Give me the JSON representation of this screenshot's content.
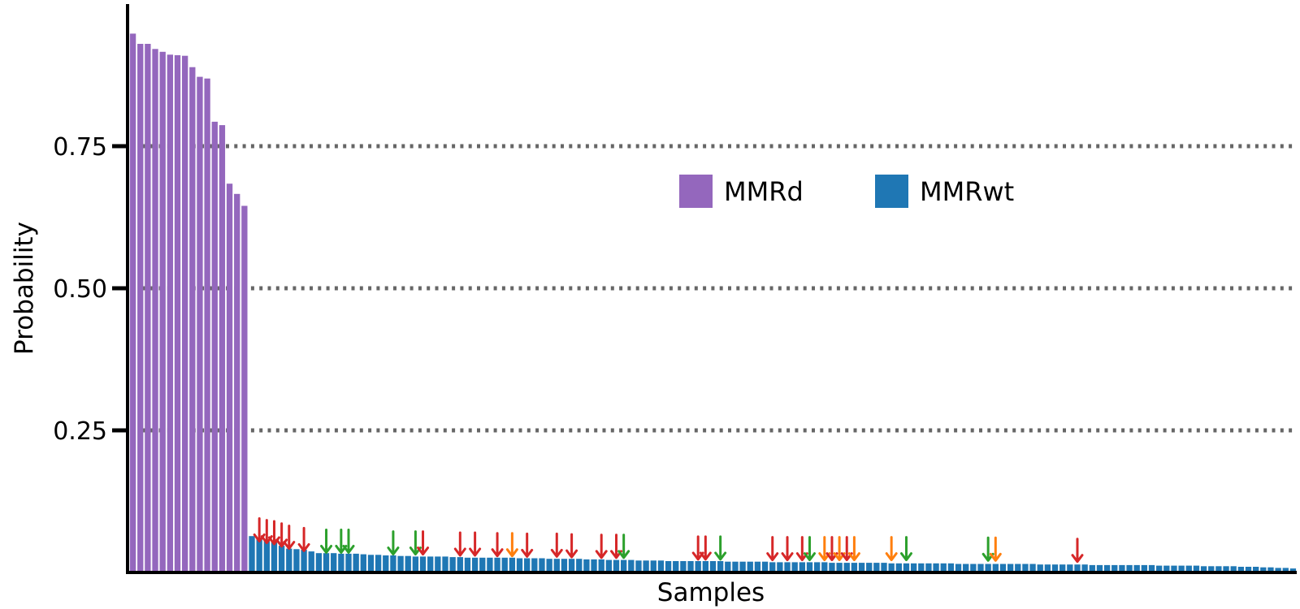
{
  "chart_data": {
    "type": "bar",
    "title": "",
    "xlabel": "Samples",
    "ylabel": "Probability",
    "ylim": [
      0,
      0.95
    ],
    "yticks": [
      {
        "value": 0.25,
        "label": "0.25"
      },
      {
        "value": 0.5,
        "label": "0.50"
      },
      {
        "value": 0.75,
        "label": "0.75"
      }
    ],
    "grid": "horizontal dotted at y ticks",
    "legend": {
      "placement": "upper-center",
      "entries": [
        {
          "name": "MMRd",
          "color": "#9467bd"
        },
        {
          "name": "MMRwt",
          "color": "#1f77b4"
        }
      ]
    },
    "series": [
      {
        "name": "MMRd",
        "color": "#9467bd",
        "values": [
          0.948,
          0.93,
          0.93,
          0.921,
          0.916,
          0.911,
          0.91,
          0.909,
          0.889,
          0.872,
          0.869,
          0.793,
          0.787,
          0.684,
          0.666,
          0.645
        ]
      },
      {
        "name": "MMRwt",
        "color": "#1f77b4",
        "values": [
          0.064,
          0.061,
          0.058,
          0.055,
          0.047,
          0.042,
          0.041,
          0.04,
          0.037,
          0.034,
          0.034,
          0.034,
          0.033,
          0.033,
          0.033,
          0.032,
          0.031,
          0.031,
          0.03,
          0.03,
          0.029,
          0.029,
          0.028,
          0.028,
          0.028,
          0.028,
          0.028,
          0.027,
          0.027,
          0.026,
          0.026,
          0.026,
          0.026,
          0.026,
          0.026,
          0.026,
          0.025,
          0.025,
          0.025,
          0.025,
          0.024,
          0.024,
          0.024,
          0.024,
          0.024,
          0.023,
          0.023,
          0.023,
          0.022,
          0.022,
          0.022,
          0.022,
          0.021,
          0.021,
          0.021,
          0.021,
          0.02,
          0.02,
          0.02,
          0.02,
          0.02,
          0.02,
          0.02,
          0.02,
          0.019,
          0.019,
          0.019,
          0.019,
          0.019,
          0.019,
          0.018,
          0.018,
          0.018,
          0.018,
          0.018,
          0.018,
          0.018,
          0.018,
          0.017,
          0.017,
          0.017,
          0.017,
          0.017,
          0.017,
          0.017,
          0.017,
          0.016,
          0.016,
          0.016,
          0.016,
          0.016,
          0.016,
          0.016,
          0.016,
          0.016,
          0.015,
          0.015,
          0.015,
          0.015,
          0.015,
          0.015,
          0.015,
          0.015,
          0.015,
          0.015,
          0.015,
          0.014,
          0.014,
          0.014,
          0.014,
          0.014,
          0.014,
          0.014,
          0.013,
          0.013,
          0.013,
          0.013,
          0.013,
          0.013,
          0.013,
          0.013,
          0.013,
          0.012,
          0.012,
          0.012,
          0.012,
          0.012,
          0.012,
          0.011,
          0.011,
          0.011,
          0.011,
          0.011,
          0.01,
          0.01,
          0.01,
          0.009,
          0.009,
          0.008,
          0.008,
          0.007
        ]
      }
    ],
    "markers": [
      {
        "sample": 17,
        "color": "#d62728",
        "level": 0.095
      },
      {
        "sample": 18,
        "color": "#d62728",
        "level": 0.092
      },
      {
        "sample": 19,
        "color": "#d62728",
        "level": 0.09
      },
      {
        "sample": 20,
        "color": "#d62728",
        "level": 0.086
      },
      {
        "sample": 21,
        "color": "#d62728",
        "level": 0.082
      },
      {
        "sample": 23,
        "color": "#d62728",
        "level": 0.078
      },
      {
        "sample": 26,
        "color": "#2ca02c",
        "level": 0.075
      },
      {
        "sample": 28,
        "color": "#2ca02c",
        "level": 0.075
      },
      {
        "sample": 29,
        "color": "#2ca02c",
        "level": 0.075
      },
      {
        "sample": 35,
        "color": "#2ca02c",
        "level": 0.072
      },
      {
        "sample": 38,
        "color": "#2ca02c",
        "level": 0.072
      },
      {
        "sample": 39,
        "color": "#d62728",
        "level": 0.072
      },
      {
        "sample": 44,
        "color": "#d62728",
        "level": 0.07
      },
      {
        "sample": 46,
        "color": "#d62728",
        "level": 0.07
      },
      {
        "sample": 49,
        "color": "#d62728",
        "level": 0.069
      },
      {
        "sample": 51,
        "color": "#ff7f0e",
        "level": 0.069
      },
      {
        "sample": 53,
        "color": "#d62728",
        "level": 0.068
      },
      {
        "sample": 57,
        "color": "#d62728",
        "level": 0.068
      },
      {
        "sample": 59,
        "color": "#d62728",
        "level": 0.067
      },
      {
        "sample": 63,
        "color": "#d62728",
        "level": 0.066
      },
      {
        "sample": 65,
        "color": "#d62728",
        "level": 0.066
      },
      {
        "sample": 66,
        "color": "#2ca02c",
        "level": 0.066
      },
      {
        "sample": 76,
        "color": "#d62728",
        "level": 0.063
      },
      {
        "sample": 77,
        "color": "#d62728",
        "level": 0.063
      },
      {
        "sample": 79,
        "color": "#2ca02c",
        "level": 0.063
      },
      {
        "sample": 86,
        "color": "#d62728",
        "level": 0.062
      },
      {
        "sample": 88,
        "color": "#d62728",
        "level": 0.062
      },
      {
        "sample": 90,
        "color": "#d62728",
        "level": 0.062
      },
      {
        "sample": 91,
        "color": "#2ca02c",
        "level": 0.062
      },
      {
        "sample": 93,
        "color": "#ff7f0e",
        "level": 0.062
      },
      {
        "sample": 94,
        "color": "#d62728",
        "level": 0.062
      },
      {
        "sample": 95,
        "color": "#ff7f0e",
        "level": 0.062
      },
      {
        "sample": 96,
        "color": "#d62728",
        "level": 0.062
      },
      {
        "sample": 97,
        "color": "#ff7f0e",
        "level": 0.062
      },
      {
        "sample": 102,
        "color": "#ff7f0e",
        "level": 0.062
      },
      {
        "sample": 104,
        "color": "#2ca02c",
        "level": 0.062
      },
      {
        "sample": 115,
        "color": "#2ca02c",
        "level": 0.061
      },
      {
        "sample": 116,
        "color": "#ff7f0e",
        "level": 0.061
      },
      {
        "sample": 127,
        "color": "#d62728",
        "level": 0.059
      }
    ]
  }
}
